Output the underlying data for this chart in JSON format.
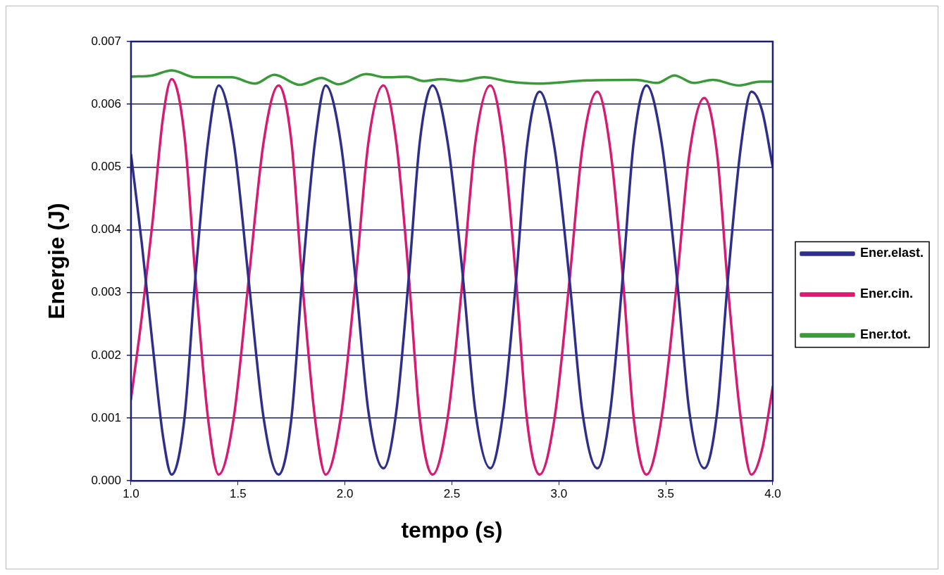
{
  "chart_data": {
    "type": "line",
    "xlabel": "tempo (s)",
    "ylabel": "Energie (J)",
    "x": [
      1.0,
      1.05,
      1.1,
      1.15,
      1.19,
      1.25,
      1.3,
      1.36,
      1.41,
      1.48,
      1.55,
      1.62,
      1.69,
      1.75,
      1.8,
      1.86,
      1.91,
      1.98,
      2.05,
      2.11,
      2.18,
      2.24,
      2.3,
      2.35,
      2.41,
      2.48,
      2.55,
      2.61,
      2.68,
      2.74,
      2.8,
      2.85,
      2.91,
      2.98,
      3.05,
      3.11,
      3.18,
      3.24,
      3.3,
      3.35,
      3.41,
      3.48,
      3.55,
      3.61,
      3.68,
      3.74,
      3.79,
      3.85,
      3.9,
      3.95,
      4.0
    ],
    "series": [
      {
        "name": "Ener.elast.",
        "color": "#2e2e8c",
        "values": [
          0.0052,
          0.0038,
          0.0022,
          0.0007,
          0.0001,
          0.001,
          0.0032,
          0.0054,
          0.0063,
          0.0054,
          0.0032,
          0.001,
          0.0001,
          0.001,
          0.0032,
          0.0054,
          0.0063,
          0.0054,
          0.0032,
          0.0011,
          0.0002,
          0.0011,
          0.0033,
          0.0054,
          0.0063,
          0.0054,
          0.0033,
          0.0011,
          0.0002,
          0.0011,
          0.0032,
          0.0053,
          0.0062,
          0.0053,
          0.0032,
          0.0011,
          0.0002,
          0.0011,
          0.0033,
          0.0054,
          0.0063,
          0.0054,
          0.0033,
          0.0011,
          0.0002,
          0.0011,
          0.0032,
          0.0053,
          0.0062,
          0.0059,
          0.005
        ]
      },
      {
        "name": "Ener.cin.",
        "color": "#d81b72",
        "values": [
          0.0013,
          0.0026,
          0.0041,
          0.0058,
          0.0064,
          0.0055,
          0.0033,
          0.001,
          0.0001,
          0.001,
          0.0032,
          0.0054,
          0.0063,
          0.0054,
          0.0032,
          0.001,
          0.0001,
          0.001,
          0.0032,
          0.0054,
          0.0063,
          0.0054,
          0.0032,
          0.001,
          0.0001,
          0.001,
          0.0032,
          0.0054,
          0.0063,
          0.0054,
          0.0032,
          0.001,
          0.0001,
          0.001,
          0.0032,
          0.0053,
          0.0062,
          0.0053,
          0.0032,
          0.001,
          0.0001,
          0.001,
          0.0031,
          0.0052,
          0.0061,
          0.0052,
          0.0031,
          0.001,
          0.0001,
          0.0005,
          0.0015
        ]
      },
      {
        "name": "Ener.tot.",
        "color": "#3a9a3a",
        "x": [
          1.0,
          1.1,
          1.19,
          1.3,
          1.47,
          1.58,
          1.67,
          1.79,
          1.89,
          1.97,
          2.1,
          2.19,
          2.29,
          2.37,
          2.45,
          2.54,
          2.65,
          2.77,
          2.9,
          3.13,
          3.36,
          3.46,
          3.54,
          3.63,
          3.72,
          3.84,
          3.94,
          4.0
        ],
        "values": [
          0.00644,
          0.00646,
          0.00654,
          0.00643,
          0.00643,
          0.00633,
          0.00647,
          0.00631,
          0.00642,
          0.00632,
          0.00648,
          0.00643,
          0.00644,
          0.00637,
          0.0064,
          0.00637,
          0.00643,
          0.00636,
          0.00633,
          0.00638,
          0.00639,
          0.00634,
          0.00646,
          0.00634,
          0.00639,
          0.0063,
          0.00636,
          0.00636
        ]
      }
    ],
    "xlim": [
      1.0,
      4.0
    ],
    "xticks": [
      {
        "value": 1.0,
        "label": "1.0"
      },
      {
        "value": 1.5,
        "label": "1.5"
      },
      {
        "value": 2.0,
        "label": "2.0"
      },
      {
        "value": 2.5,
        "label": "2.5"
      },
      {
        "value": 3.0,
        "label": "3.0"
      },
      {
        "value": 3.5,
        "label": "3.5"
      },
      {
        "value": 4.0,
        "label": "4.0"
      }
    ],
    "ylim": [
      0,
      0.007
    ],
    "yticks": [
      {
        "value": 0,
        "label": "0.000"
      },
      {
        "value": 0.001,
        "label": "0.001"
      },
      {
        "value": 0.002,
        "label": "0.002"
      },
      {
        "value": 0.003,
        "label": "0.003"
      },
      {
        "value": 0.004,
        "label": "0.004"
      },
      {
        "value": 0.005,
        "label": "0.005"
      },
      {
        "value": 0.006,
        "label": "0.006"
      },
      {
        "value": 0.007,
        "label": "0.007"
      }
    ],
    "grid": "y",
    "legend": "right",
    "marker": "none",
    "line_style": "solid"
  }
}
